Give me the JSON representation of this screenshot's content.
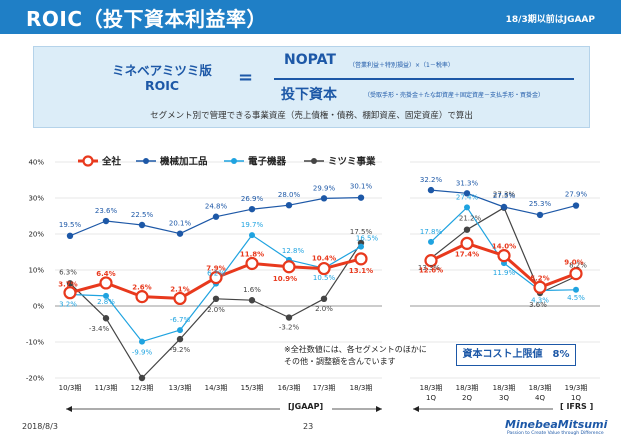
{
  "header": {
    "title": "ROIC（投下資本利益率）",
    "note": "18/3期以前はJGAAP"
  },
  "formula": {
    "label_line1": "ミネベアミツミ版",
    "label_line2": "ROIC",
    "equals": "=",
    "numerator": "NOPAT",
    "numerator_note": "（営業利益＋特別損益）×（1－税率）",
    "denominator": "投下資本",
    "denominator_note": "（受取手形・売掛金＋たな卸資産＋固定資産－支払手形・買掛金）",
    "subtitle": "セグメント別で管理できる事業資産（売上債権・債務、棚卸資産、固定資産）で算出"
  },
  "chart_data": {
    "type": "line",
    "title": "",
    "xlabel": "",
    "ylabel": "",
    "ylim": [
      -20,
      40
    ],
    "yticks": [
      "40%",
      "30%",
      "20%",
      "10%",
      "0%",
      "-10%",
      "-20%"
    ],
    "categories": [
      "10/3期",
      "11/3期",
      "12/3期",
      "13/3期",
      "14/3期",
      "15/3期",
      "16/3期",
      "17/3期",
      "18/3期",
      "18/3期 1Q",
      "18/3期 2Q",
      "18/3期 3Q",
      "18/3期 4Q",
      "19/3期 1Q"
    ],
    "x_labels": [
      {
        "line1": "10/3期",
        "line2": ""
      },
      {
        "line1": "11/3期",
        "line2": ""
      },
      {
        "line1": "12/3期",
        "line2": ""
      },
      {
        "line1": "13/3期",
        "line2": ""
      },
      {
        "line1": "14/3期",
        "line2": ""
      },
      {
        "line1": "15/3期",
        "line2": ""
      },
      {
        "line1": "16/3期",
        "line2": ""
      },
      {
        "line1": "17/3期",
        "line2": ""
      },
      {
        "line1": "18/3期",
        "line2": ""
      },
      {
        "line1": "18/3期",
        "line2": "1Q"
      },
      {
        "line1": "18/3期",
        "line2": "2Q"
      },
      {
        "line1": "18/3期",
        "line2": "3Q"
      },
      {
        "line1": "18/3期",
        "line2": "4Q"
      },
      {
        "line1": "19/3期",
        "line2": "1Q"
      }
    ],
    "series": [
      {
        "name": "全社",
        "color": "#e8391d",
        "width": 3,
        "values": [
          3.7,
          6.4,
          2.6,
          2.1,
          7.9,
          11.8,
          10.9,
          10.4,
          13.1,
          12.6,
          17.4,
          14.0,
          5.2,
          9.0
        ],
        "labels": [
          "3.7%",
          "6.4%",
          "2.6%",
          "2.1%",
          "7.9%",
          "11.8%",
          "10.9%",
          "10.4%",
          "13.1%",
          "12.6%",
          "17.4%",
          "14.0%",
          "5.2%",
          "9.0%"
        ]
      },
      {
        "name": "機械加工品",
        "color": "#1d58a7",
        "width": 1.2,
        "values": [
          19.5,
          23.6,
          22.5,
          20.1,
          24.8,
          26.9,
          28.0,
          29.9,
          30.1,
          32.2,
          31.3,
          27.5,
          25.3,
          27.9
        ],
        "labels": [
          "19.5%",
          "23.6%",
          "22.5%",
          "20.1%",
          "24.8%",
          "26.9%",
          "28.0%",
          "29.9%",
          "30.1%",
          "32.2%",
          "31.3%",
          "27.5%",
          "25.3%",
          "27.9%"
        ]
      },
      {
        "name": "電子機器",
        "color": "#1fa3e0",
        "width": 1.2,
        "values": [
          3.2,
          2.8,
          -9.9,
          -6.7,
          6.2,
          19.7,
          12.8,
          10.5,
          16.5,
          17.8,
          27.4,
          11.9,
          4.3,
          4.5
        ],
        "labels": [
          "3.2%",
          "2.8%",
          "-9.9%",
          "-6.7%",
          "6.2%",
          "19.7%",
          "12.8%",
          "10.5%",
          "16.5%",
          "17.8%",
          "27.4%",
          "11.9%",
          "4.3%",
          "4.5%"
        ]
      },
      {
        "name": "ミツミ事業",
        "color": "#444444",
        "width": 1.2,
        "values": [
          6.3,
          -3.4,
          -20.0,
          -9.2,
          2.0,
          1.6,
          -3.2,
          2.0,
          17.5,
          13.3,
          21.2,
          27.3,
          3.6,
          8.2
        ],
        "labels": [
          "6.3%",
          "-3.4%",
          "",
          "-9.2%",
          "2.0%",
          "1.6%",
          "-3.2%",
          "2.0%",
          "17.5%",
          "13.3%",
          "21.2%",
          "27.3%",
          "3.6%",
          "8.2%"
        ]
      }
    ]
  },
  "annotations": {
    "note_line1": "※全社数値には、各セグメントのほかに",
    "note_line2": "その他・調整額を含んでいます",
    "cost_label": "資本コスト上限値　8%",
    "jgaap": "[JGAAP]",
    "ifrs": "[ IFRS ]"
  },
  "footer": {
    "date": "2018/8/3",
    "page": "23",
    "logo": "MinebeaMitsumi",
    "tagline": "Passion to Create Value through Difference"
  }
}
